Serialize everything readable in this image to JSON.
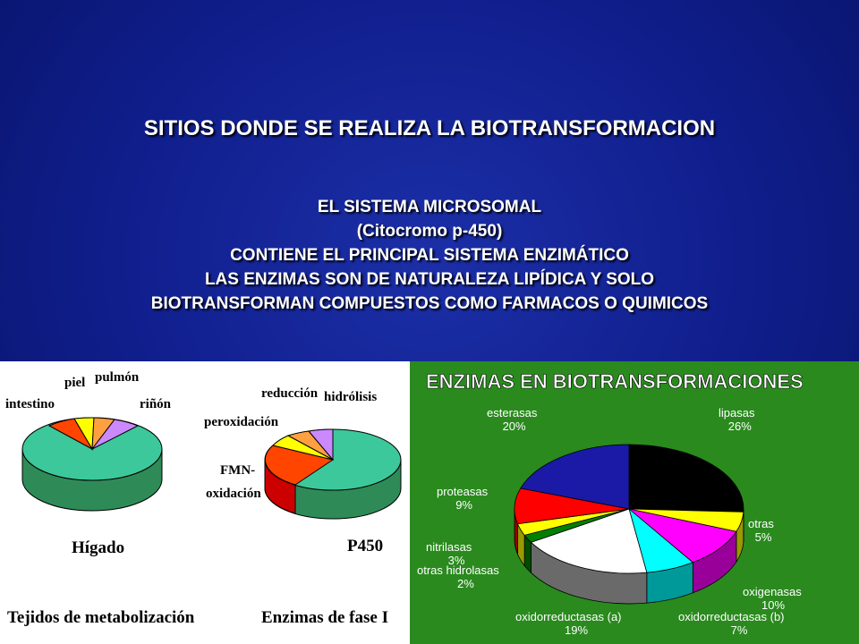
{
  "slide": {
    "title": "SITIOS DONDE SE REALIZA LA BIOTRANSFORMACION",
    "lines": [
      "EL SISTEMA MICROSOMAL",
      "(Citocromo p-450)",
      "CONTIENE EL PRINCIPAL SISTEMA ENZIMÁTICO",
      "LAS ENZIMAS SON DE NATURALEZA LIPÍDICA Y SOLO",
      "BIOTRANSFORMAN COMPUESTOS COMO FARMACOS O QUIMICOS"
    ]
  },
  "figure_left": {
    "tissues": {
      "labels": [
        "intestino",
        "piel",
        "pulmón",
        "riñón"
      ],
      "name": "Hígado",
      "caption": "Tejidos de metabolización"
    },
    "enzymes": {
      "labels": [
        "reducción",
        "hidrólisis",
        "peroxidación",
        "FMN-",
        "oxidación"
      ],
      "name": "P450",
      "caption": "Enzimas de fase I"
    }
  },
  "figure_right": {
    "title": "ENZIMAS EN BIOTRANSFORMACIONES",
    "slices": [
      {
        "name": "lipasas",
        "pct": "26%",
        "value": 26,
        "color": "#000000"
      },
      {
        "name": "otras",
        "pct": "5%",
        "value": 5,
        "color": "#ffff00"
      },
      {
        "name": "oxigenasas",
        "pct": "10%",
        "value": 10,
        "color": "#ff00ff"
      },
      {
        "name": "oxidorreductasas (b)",
        "pct": "7%",
        "value": 7,
        "color": "#00ffff"
      },
      {
        "name": "oxidorreductasas (a)",
        "pct": "19%",
        "value": 19,
        "color": "#ffffff"
      },
      {
        "name": "otras hidrolasas",
        "pct": "2%",
        "value": 2,
        "color": "#008000"
      },
      {
        "name": "nitrilasas",
        "pct": "3%",
        "value": 3,
        "color": "#ffff00"
      },
      {
        "name": "proteasas",
        "pct": "9%",
        "value": 9,
        "color": "#ff0000"
      },
      {
        "name": "esterasas",
        "pct": "20%",
        "value": 20,
        "color": "#1a1aa6"
      }
    ]
  }
}
